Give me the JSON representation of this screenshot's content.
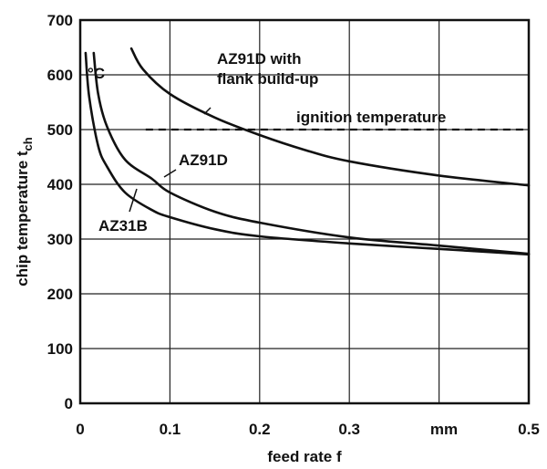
{
  "chart_data": {
    "type": "line",
    "xlabel": "feed rate f",
    "x_unit_label": "mm",
    "ylabel": "chip temperature t",
    "ylabel_subscript": "ch",
    "y_unit_label": "°C",
    "xlim": [
      0,
      0.5
    ],
    "ylim": [
      0,
      700
    ],
    "xticks": [
      {
        "value": 0,
        "label": "0"
      },
      {
        "value": 0.1,
        "label": "0.1"
      },
      {
        "value": 0.2,
        "label": "0.2"
      },
      {
        "value": 0.3,
        "label": "0.3"
      },
      {
        "value": 0.5,
        "label": "0.5"
      }
    ],
    "yticks": [
      {
        "value": 0,
        "label": "0"
      },
      {
        "value": 100,
        "label": "100"
      },
      {
        "value": 200,
        "label": "200"
      },
      {
        "value": 300,
        "label": "300"
      },
      {
        "value": 400,
        "label": "400"
      },
      {
        "value": 500,
        "label": "500"
      },
      {
        "value": 600,
        "label": "600"
      },
      {
        "value": 700,
        "label": "700"
      }
    ],
    "grid": true,
    "series": [
      {
        "name": "AZ31B",
        "x": [
          0.006,
          0.01,
          0.02,
          0.03,
          0.05,
          0.08,
          0.1,
          0.15,
          0.2,
          0.3,
          0.4,
          0.5
        ],
        "y": [
          640,
          560,
          470,
          432,
          385,
          353,
          340,
          318,
          305,
          292,
          282,
          272
        ]
      },
      {
        "name": "AZ91D",
        "x": [
          0.015,
          0.02,
          0.03,
          0.05,
          0.08,
          0.1,
          0.15,
          0.2,
          0.3,
          0.4,
          0.5
        ],
        "y": [
          640,
          565,
          505,
          445,
          410,
          385,
          350,
          330,
          303,
          288,
          273
        ]
      },
      {
        "name": "AZ91D with flank build-up",
        "x": [
          0.057,
          0.07,
          0.1,
          0.15,
          0.2,
          0.25,
          0.3,
          0.4,
          0.5
        ],
        "y": [
          648,
          610,
          565,
          522,
          490,
          463,
          442,
          416,
          398
        ]
      }
    ],
    "reference_lines": [
      {
        "label": "ignition temperature",
        "y": 500,
        "style": "dashed"
      }
    ],
    "annotations": [
      {
        "text": "AZ91D with",
        "for": "AZ91D with flank build-up"
      },
      {
        "text": "flank build-up",
        "for": "AZ91D with flank build-up"
      },
      {
        "text": "AZ91D",
        "for": "AZ91D"
      },
      {
        "text": "AZ31B",
        "for": "AZ31B"
      }
    ]
  }
}
